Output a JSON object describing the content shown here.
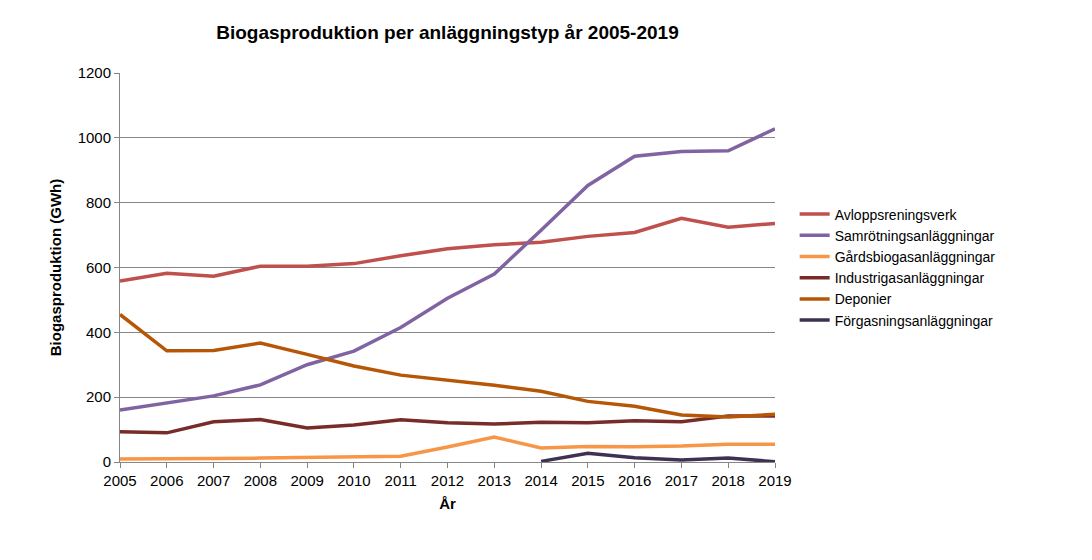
{
  "chart_data": {
    "type": "line",
    "title": "Biogasproduktion per anläggningstyp år 2005-2019",
    "x_label": "År",
    "y_label": "Biogasproduktion (GWh)",
    "categories": [
      "2005",
      "2006",
      "2007",
      "2008",
      "2009",
      "2010",
      "2011",
      "2012",
      "2013",
      "2014",
      "2015",
      "2016",
      "2017",
      "2018",
      "2019"
    ],
    "series": [
      {
        "name": "Avloppsreningsverk",
        "color": "#c0504d",
        "values": [
          558,
          582,
          573,
          604,
          604,
          612,
          636,
          658,
          670,
          678,
          696,
          708,
          752,
          724,
          736
        ]
      },
      {
        "name": "Samrötningsanläggningar",
        "color": "#8064a2",
        "values": [
          160,
          182,
          204,
          238,
          300,
          342,
          415,
          505,
          580,
          715,
          853,
          943,
          958,
          960,
          1028
        ]
      },
      {
        "name": "Gårdsbiogasanläggningar",
        "color": "#f79646",
        "values": [
          9,
          11,
          11,
          12,
          14,
          14,
          18,
          46,
          77,
          43,
          48,
          47,
          49,
          55,
          55
        ]
      },
      {
        "name": "Industrigasanläggningar",
        "color": "#772c2a",
        "values": [
          93,
          90,
          124,
          131,
          105,
          114,
          130,
          121,
          117,
          123,
          121,
          127,
          124,
          142,
          142
        ]
      },
      {
        "name": "Deponier",
        "color": "#b65708",
        "values": [
          455,
          343,
          344,
          367,
          332,
          296,
          268,
          253,
          237,
          218,
          187,
          172,
          145,
          139,
          147
        ]
      },
      {
        "name": "Förgasningsanläggningar",
        "color": "#3f3151",
        "values": [
          null,
          null,
          null,
          null,
          null,
          null,
          null,
          null,
          null,
          2,
          27,
          13,
          6,
          12,
          1
        ]
      }
    ],
    "ylim": [
      0,
      1200
    ],
    "yticks": [
      0,
      200,
      400,
      600,
      800,
      1000,
      1200
    ],
    "grid": true,
    "legend": "right"
  }
}
